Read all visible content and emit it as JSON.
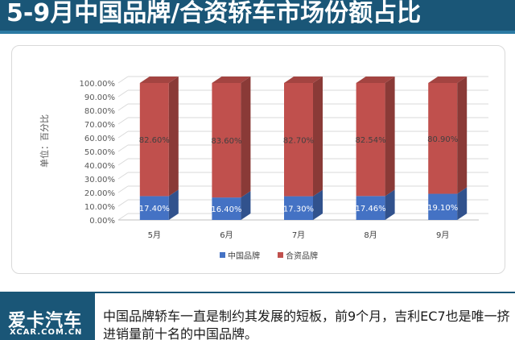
{
  "header": {
    "title": "5-9月中国品牌/合资轿车市场份额占比"
  },
  "chart_data": {
    "type": "bar",
    "stacked": true,
    "categories": [
      "5月",
      "6月",
      "7月",
      "8月",
      "9月"
    ],
    "series": [
      {
        "name": "中国品牌",
        "values": [
          17.4,
          16.4,
          17.3,
          17.46,
          19.1
        ],
        "labels": [
          "17.40%",
          "16.40%",
          "17.30%",
          "17.46%",
          "19.10%"
        ],
        "color": "#4472c4"
      },
      {
        "name": "合资品牌",
        "values": [
          82.6,
          83.6,
          82.7,
          82.54,
          80.9
        ],
        "labels": [
          "82.60%",
          "83.60%",
          "82.70%",
          "82.54%",
          "80.90%"
        ],
        "color": "#c0504d"
      }
    ],
    "yticks": [
      "0.00%",
      "10.00%",
      "20.00%",
      "30.00%",
      "40.00%",
      "50.00%",
      "60.00%",
      "70.00%",
      "80.00%",
      "90.00%",
      "100.00%"
    ],
    "ylim": [
      0,
      100
    ],
    "ylabel": "单位：百分比",
    "legend_position": "bottom",
    "grid": true
  },
  "footer": {
    "logo_cn": "爱卡汽车",
    "logo_en": "XCAR.COM.CN",
    "caption": "中国品牌轿车一直是制约其发展的短板，前9个月，吉利EC7也是唯一挤进销量前十名的中国品牌。"
  }
}
